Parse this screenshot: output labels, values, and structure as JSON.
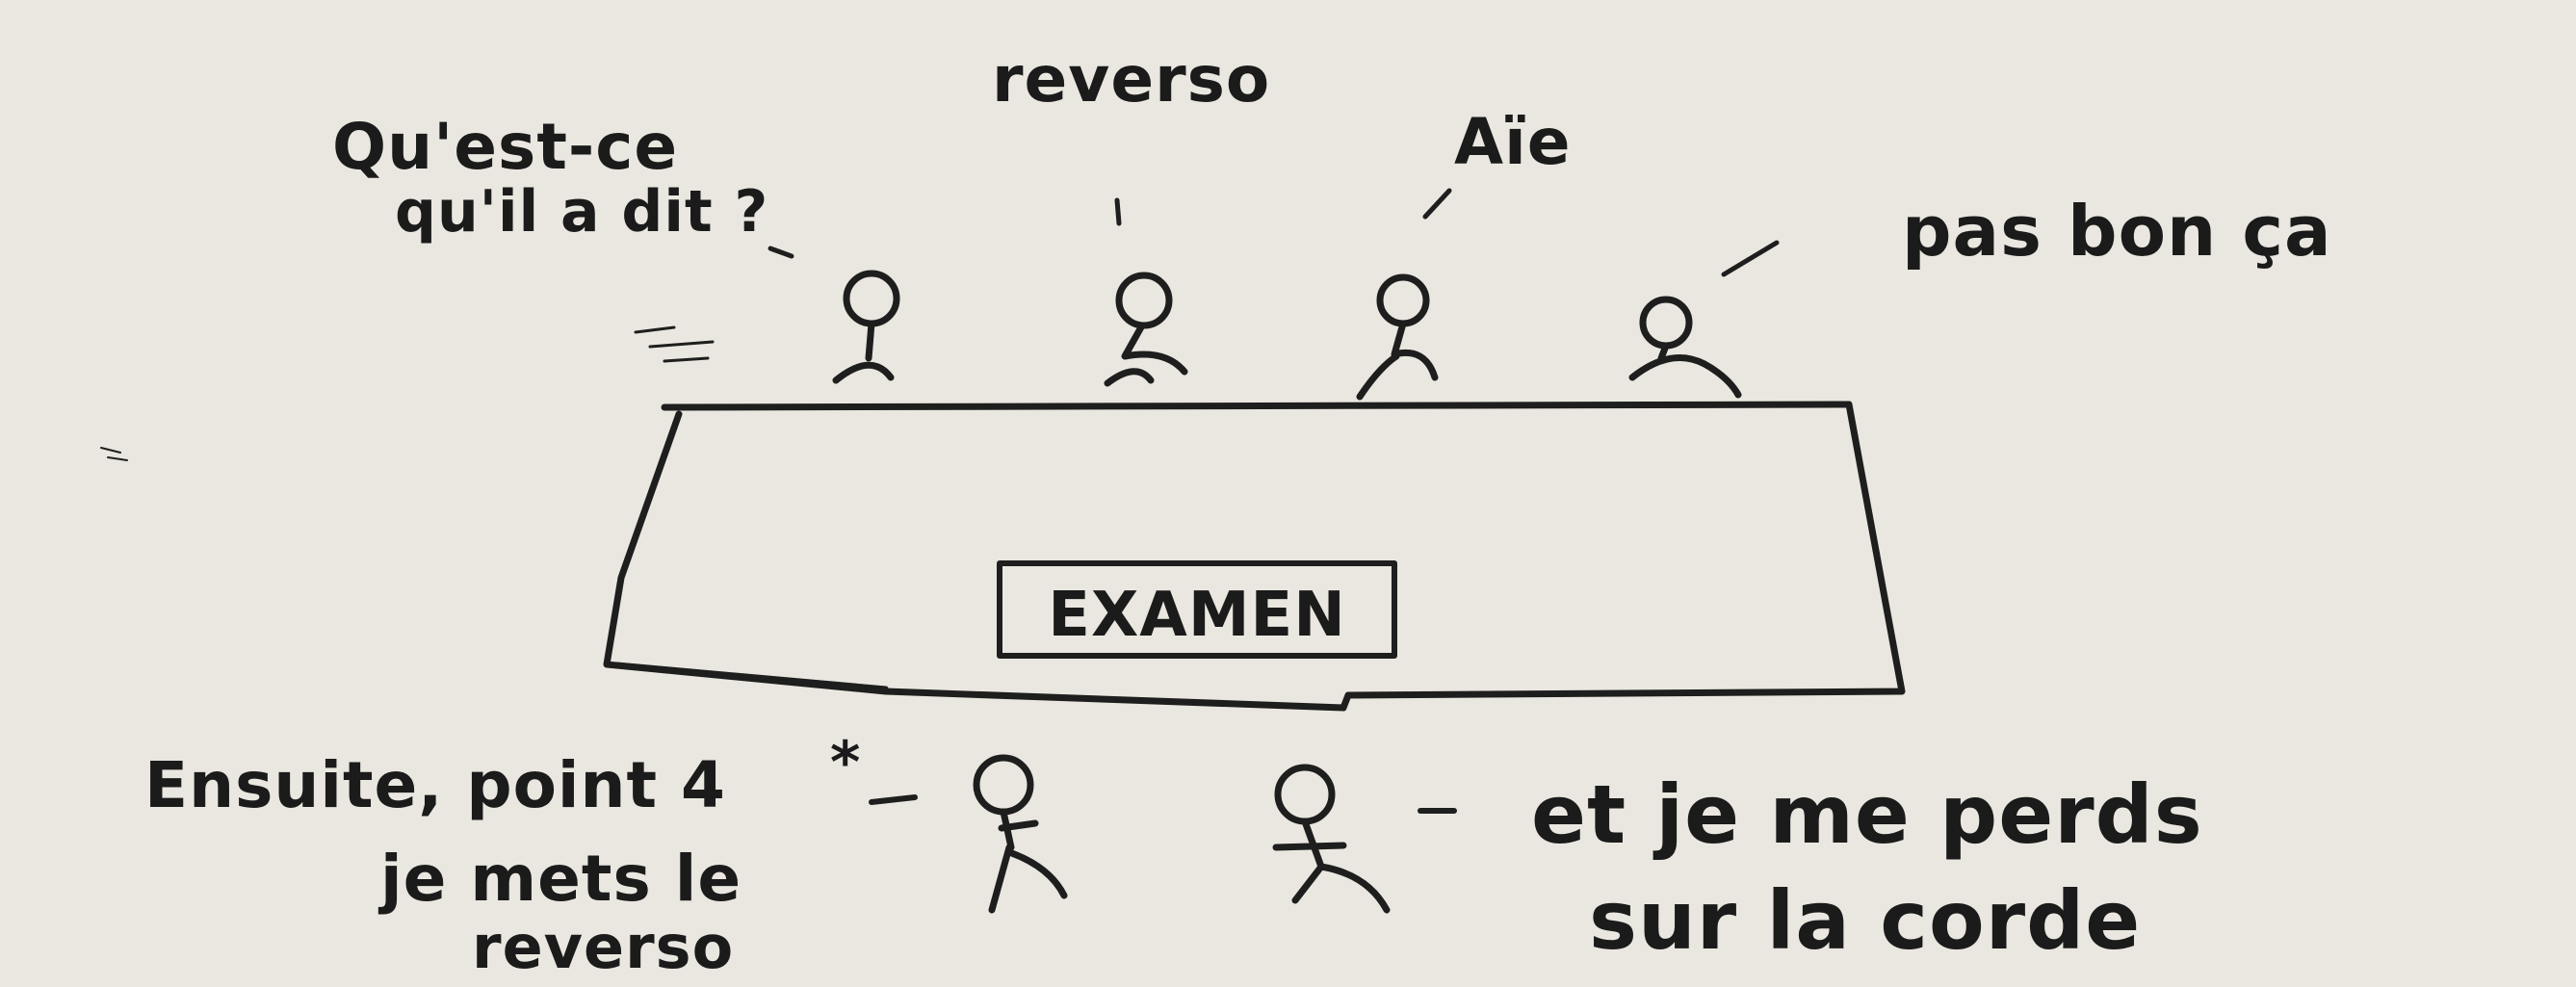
{
  "colors": {
    "paper": "#e9e7df",
    "ink": "#1e1e1e"
  },
  "sketch": {
    "jury_speech": {
      "left_line1": "Qu'est-ce",
      "left_line2": "qu'il a dit ?",
      "second": "reverso",
      "third": "Aïe",
      "fourth": "pas bon ça"
    },
    "table_label": "EXAMEN",
    "candidate_note": {
      "line1": "Ensuite, point 4",
      "asterisk": "*",
      "line2": "je mets le",
      "line3": "reverso"
    },
    "candidate_thought": {
      "line1": "et je me perds",
      "line2": "sur la corde"
    }
  }
}
